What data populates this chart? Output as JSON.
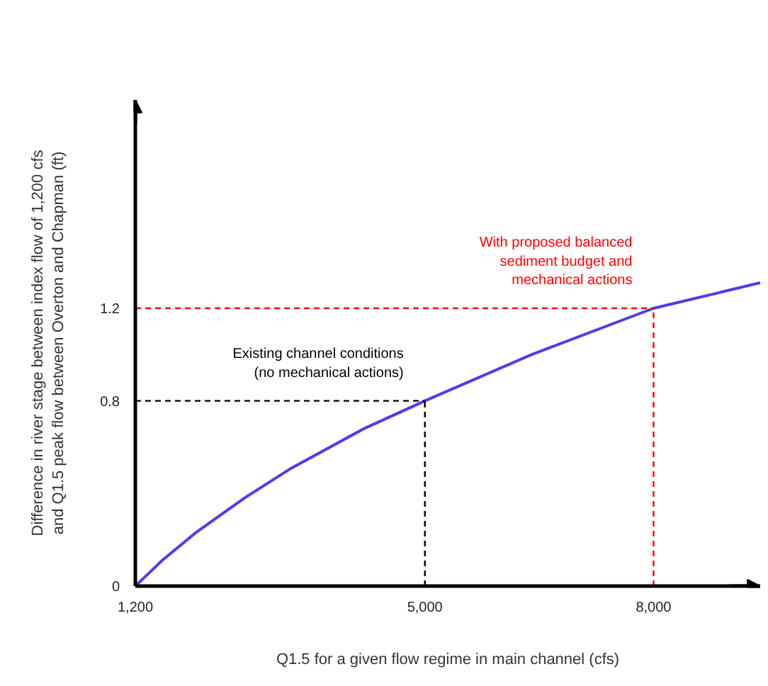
{
  "chart_data": {
    "type": "line",
    "xlabel": "Q1.5 for a given flow regime in main channel (cfs)",
    "ylabel": "Difference in river stage between index flow of 1,200 cfs\nand Q1.5 peak flow between Overton and Chapman (ft)",
    "x": [
      1200,
      1360,
      1550,
      1990,
      2630,
      3250,
      4200,
      5000,
      6400,
      8000,
      9400
    ],
    "series": [
      {
        "color": "#4b3cf0",
        "values": [
          0,
          0.05,
          0.11,
          0.23,
          0.38,
          0.51,
          0.68,
          0.8,
          1.0,
          1.2,
          1.31
        ]
      }
    ],
    "xlim": [
      1200,
      9400
    ],
    "ylim": [
      0,
      2.1
    ],
    "xticks": [
      {
        "value": 1200,
        "label": "1,200"
      },
      {
        "value": 5000,
        "label": "5,000"
      },
      {
        "value": 8000,
        "label": "8,000"
      }
    ],
    "yticks": [
      0,
      0.8,
      1.2
    ],
    "grid": false,
    "marker": "none",
    "line_style": "solid",
    "ref_lines": [
      {
        "axis": "y",
        "value": 0.8,
        "label": "Existing channel conditions\n(no mechanical actions)",
        "color": "#000000",
        "line_style": "dashed"
      },
      {
        "axis": "x",
        "value": 5000,
        "color": "#000000",
        "line_style": "dashed"
      },
      {
        "axis": "y",
        "value": 1.2,
        "label": "With proposed balanced\nsediment budget and\nmechanical actions",
        "color": "#ff0000",
        "line_style": "dashed"
      },
      {
        "axis": "x",
        "value": 8000,
        "color": "#ff0000",
        "line_style": "dashed"
      }
    ]
  }
}
